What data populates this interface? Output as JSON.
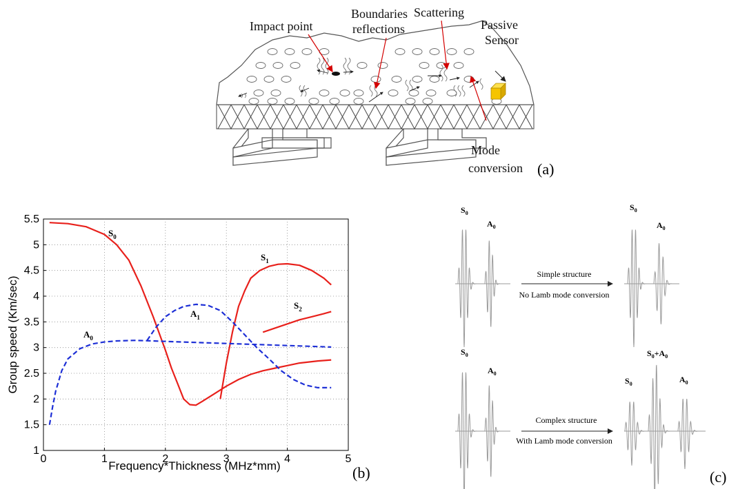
{
  "panel_a": {
    "labels": {
      "impact_point": "Impact point",
      "boundaries_line1": "Boundaries",
      "boundaries_line2": "reflections",
      "scattering": "Scattering",
      "passive_line1": "Passive",
      "passive_line2": "Sensor",
      "mode_line1": "Mode",
      "mode_line2": "conversion"
    },
    "panel_label": "(a)",
    "colors": {
      "sensor": "#f5c400",
      "arrows": "#d40000",
      "structure": "#555555"
    }
  },
  "panel_b": {
    "panel_label": "(b)",
    "mode_labels": {
      "s0": {
        "main": "S",
        "sub": "0"
      },
      "s1": {
        "main": "S",
        "sub": "1"
      },
      "s2": {
        "main": "S",
        "sub": "2"
      },
      "a0": {
        "main": "A",
        "sub": "0"
      },
      "a1": {
        "main": "A",
        "sub": "1"
      }
    }
  },
  "panel_c": {
    "panel_label": "(c)",
    "top": {
      "arrow_top_text": "Simple structure",
      "arrow_bottom_text": "No Lamb mode conversion",
      "left": {
        "s0": "S",
        "s0_sub": "0",
        "a0": "A",
        "a0_sub": "0"
      },
      "right": {
        "s0": "S",
        "s0_sub": "0",
        "a0": "A",
        "a0_sub": "0"
      }
    },
    "bottom": {
      "arrow_top_text": "Complex structure",
      "arrow_bottom_text": "With Lamb mode conversion",
      "left": {
        "s0": "S",
        "s0_sub": "0",
        "a0": "A",
        "a0_sub": "0"
      },
      "right": {
        "s0": "S",
        "s0_sub": "0",
        "sa_main1": "S",
        "sa_sub1": "0",
        "sa_plus": "+A",
        "sa_sub2": "0",
        "a0": "A",
        "a0_sub": "0"
      }
    }
  },
  "chart_data": {
    "type": "line",
    "xlabel": "Frequency*Thickness (MHz*mm)",
    "ylabel": "Group speed (Km/sec)",
    "xlim": [
      0,
      5
    ],
    "ylim": [
      1,
      5.5
    ],
    "xticks": [
      "0",
      "1",
      "2",
      "3",
      "4",
      "5"
    ],
    "yticks": [
      "1",
      "1.5",
      "2",
      "2.5",
      "3",
      "3.5",
      "4",
      "4.5",
      "5",
      "5.5"
    ],
    "grid": true,
    "series": [
      {
        "name": "S0",
        "style": "solid",
        "color": "#e8201b",
        "x": [
          0.1,
          0.4,
          0.7,
          1.0,
          1.2,
          1.4,
          1.6,
          1.8,
          2.0,
          2.1,
          2.2,
          2.3,
          2.4,
          2.5,
          2.6,
          2.8,
          3.0,
          3.2,
          3.4,
          3.6,
          3.8,
          4.0,
          4.2,
          4.5,
          4.72
        ],
        "y": [
          5.43,
          5.41,
          5.35,
          5.2,
          5.0,
          4.7,
          4.2,
          3.6,
          2.95,
          2.6,
          2.3,
          2.0,
          1.89,
          1.88,
          1.95,
          2.1,
          2.25,
          2.38,
          2.48,
          2.55,
          2.6,
          2.65,
          2.7,
          2.74,
          2.76
        ]
      },
      {
        "name": "S1",
        "style": "solid",
        "color": "#e8201b",
        "x": [
          2.9,
          3.0,
          3.1,
          3.2,
          3.3,
          3.4,
          3.55,
          3.7,
          3.85,
          4.0,
          4.2,
          4.4,
          4.6,
          4.72
        ],
        "y": [
          2.0,
          2.7,
          3.3,
          3.8,
          4.1,
          4.35,
          4.5,
          4.58,
          4.62,
          4.63,
          4.6,
          4.5,
          4.35,
          4.22
        ]
      },
      {
        "name": "S2",
        "style": "solid",
        "color": "#e8201b",
        "x": [
          3.6,
          3.8,
          4.0,
          4.2,
          4.4,
          4.6,
          4.72
        ],
        "y": [
          3.3,
          3.38,
          3.46,
          3.54,
          3.6,
          3.66,
          3.7
        ]
      },
      {
        "name": "A0",
        "style": "dashed",
        "color": "#1d2fd6",
        "x": [
          0.1,
          0.15,
          0.2,
          0.3,
          0.4,
          0.6,
          0.8,
          1.0,
          1.2,
          1.5,
          1.8,
          2.0,
          2.5,
          3.0,
          3.5,
          4.0,
          4.5,
          4.72
        ],
        "y": [
          1.5,
          1.85,
          2.15,
          2.55,
          2.78,
          2.98,
          3.07,
          3.11,
          3.13,
          3.14,
          3.13,
          3.12,
          3.1,
          3.08,
          3.06,
          3.04,
          3.02,
          3.01
        ]
      },
      {
        "name": "A1",
        "style": "dashed",
        "color": "#1d2fd6",
        "x": [
          1.7,
          1.85,
          2.0,
          2.15,
          2.3,
          2.5,
          2.7,
          2.9,
          3.1,
          3.3,
          3.5,
          3.7,
          3.9,
          4.1,
          4.3,
          4.5,
          4.72
        ],
        "y": [
          3.14,
          3.4,
          3.6,
          3.72,
          3.8,
          3.84,
          3.82,
          3.72,
          3.5,
          3.25,
          3.0,
          2.78,
          2.55,
          2.38,
          2.27,
          2.22,
          2.22
        ]
      }
    ]
  }
}
